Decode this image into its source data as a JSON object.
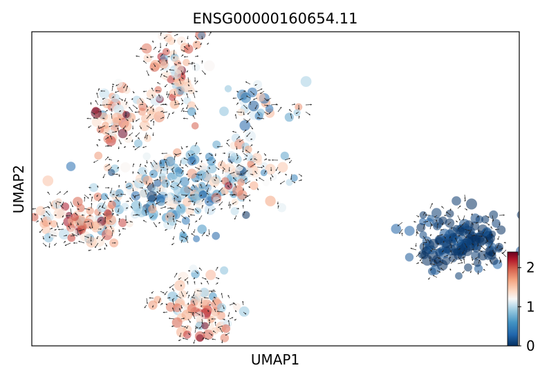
{
  "chart_data": {
    "type": "scatter",
    "subtype": "umap-embedding-with-velocity-stream-arrows",
    "title": "ENSG00000160654.11",
    "xlabel": "UMAP1",
    "ylabel": "UMAP2",
    "axis_ticks_shown": false,
    "colorbar": {
      "colormap": "RdBu_r",
      "range": [
        0,
        2.4
      ],
      "ticks": [
        0,
        1,
        2
      ],
      "tick_labels": [
        "0",
        "1",
        "2"
      ]
    },
    "clusters": [
      {
        "name": "top-branch",
        "center": [
          0.3,
          0.88
        ],
        "spread": [
          0.03,
          0.07
        ],
        "mean_value": 1.55,
        "n": 70
      },
      {
        "name": "upper-left-branch",
        "center": [
          0.18,
          0.73
        ],
        "spread": [
          0.04,
          0.05
        ],
        "mean_value": 1.55,
        "n": 55
      },
      {
        "name": "upper-right-small-branch",
        "center": [
          0.45,
          0.76
        ],
        "spread": [
          0.04,
          0.04
        ],
        "mean_value": 0.9,
        "n": 25
      },
      {
        "name": "center-body",
        "center": [
          0.3,
          0.5
        ],
        "spread": [
          0.07,
          0.06
        ],
        "mean_value": 0.85,
        "n": 160
      },
      {
        "name": "right-arm",
        "center": [
          0.42,
          0.55
        ],
        "spread": [
          0.05,
          0.05
        ],
        "mean_value": 1.15,
        "n": 55
      },
      {
        "name": "left-branch",
        "center": [
          0.1,
          0.4
        ],
        "spread": [
          0.05,
          0.04
        ],
        "mean_value": 1.5,
        "n": 85
      },
      {
        "name": "bottom-branch",
        "center": [
          0.35,
          0.12
        ],
        "spread": [
          0.04,
          0.05
        ],
        "mean_value": 1.45,
        "n": 75
      },
      {
        "name": "isolated-right-cluster",
        "center": [
          0.88,
          0.33
        ],
        "spread": [
          0.05,
          0.05
        ],
        "mean_value": 0.05,
        "n": 140
      }
    ],
    "vector_field_shown": true
  }
}
